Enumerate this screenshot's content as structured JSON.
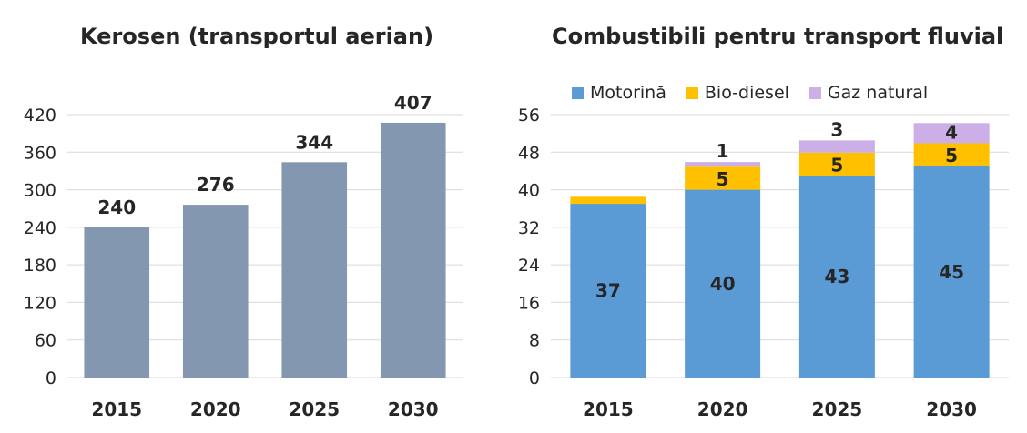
{
  "chart_data": [
    {
      "type": "bar",
      "title": "Kerosen (transportul aerian)",
      "categories": [
        "2015",
        "2020",
        "2025",
        "2030"
      ],
      "values": [
        240,
        276,
        344,
        407
      ],
      "ylim": [
        0,
        420
      ],
      "yticks": [
        0,
        60,
        120,
        180,
        240,
        300,
        360,
        420
      ],
      "grid": true,
      "color": "#8497B0"
    },
    {
      "type": "bar",
      "stacked": true,
      "title": "Combustibili pentru transport fluvial",
      "categories": [
        "2015",
        "2020",
        "2025",
        "2030"
      ],
      "series": [
        {
          "name": "Motorină",
          "values": [
            37,
            40,
            43,
            45
          ],
          "color": "#5B9BD5",
          "labels": [
            "37",
            "40",
            "43",
            "45"
          ]
        },
        {
          "name": "Bio-diesel",
          "values": [
            1.5,
            4.9,
            4.9,
            4.9
          ],
          "color": "#FFC000",
          "labels": [
            "",
            "5",
            "5",
            "5"
          ]
        },
        {
          "name": "Gaz natural",
          "values": [
            0,
            1,
            2.6,
            4.3
          ],
          "color": "#CBAFE6",
          "labels": [
            "",
            "1",
            "3",
            "4"
          ]
        }
      ],
      "ylim": [
        0,
        56
      ],
      "yticks": [
        0,
        8,
        16,
        24,
        32,
        40,
        48,
        56
      ],
      "grid": true,
      "legend": "top"
    }
  ]
}
